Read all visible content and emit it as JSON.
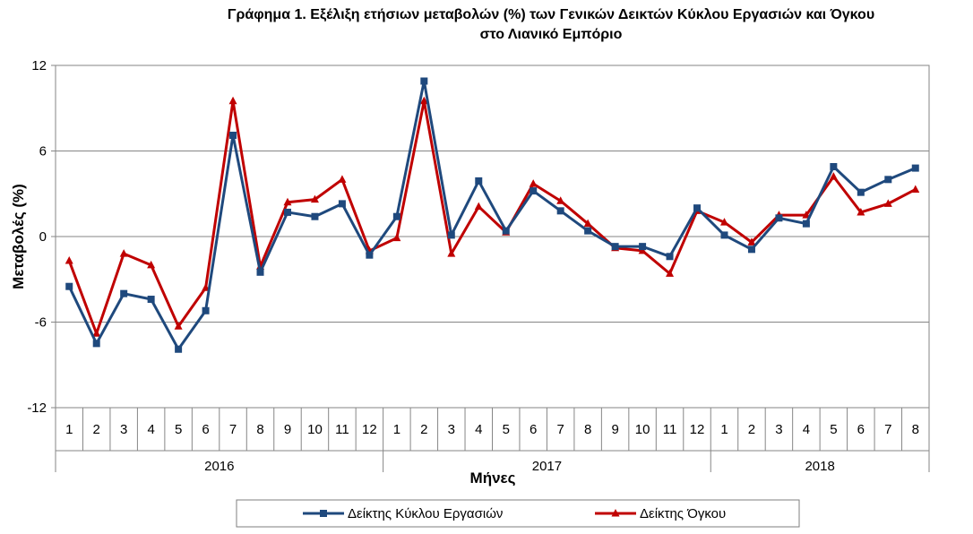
{
  "chart_data": {
    "type": "line",
    "title_line1": "Γράφημα 1. Εξέλιξη ετήσιων μεταβολών (%) των Γενικών Δεικτών Κύκλου Εργασιών και Όγκου",
    "title_line2": "στο Λιανικό Εμπόριο",
    "ylabel": "Μεταβολές  (%)",
    "xlabel": "Μήνες",
    "ylim": [
      -12,
      12
    ],
    "yticks": [
      "12",
      "6",
      "0",
      "-6",
      "-12"
    ],
    "ytick_values": [
      12,
      6,
      0,
      -6,
      -12
    ],
    "months": [
      "1",
      "2",
      "3",
      "4",
      "5",
      "6",
      "7",
      "8",
      "9",
      "10",
      "11",
      "12",
      "1",
      "2",
      "3",
      "4",
      "5",
      "6",
      "7",
      "8",
      "9",
      "10",
      "11",
      "12",
      "1",
      "2",
      "3",
      "4",
      "5",
      "6",
      "7",
      "8"
    ],
    "years": [
      {
        "label": "2016",
        "count": 12
      },
      {
        "label": "2017",
        "count": 12
      },
      {
        "label": "2018",
        "count": 8
      }
    ],
    "grid": true,
    "legend_position": "bottom",
    "series": [
      {
        "name": "Δείκτης Κύκλου Εργασιών",
        "color": "#1F497D",
        "marker": "square",
        "values": [
          -3.5,
          -7.5,
          -4.0,
          -4.4,
          -7.9,
          -5.2,
          7.1,
          -2.5,
          1.7,
          1.4,
          2.3,
          -1.3,
          1.4,
          10.9,
          0.1,
          3.9,
          0.4,
          3.2,
          1.8,
          0.4,
          -0.7,
          -0.7,
          -1.4,
          2.0,
          0.1,
          -0.9,
          1.3,
          0.9,
          4.9,
          3.1,
          4.0,
          4.8
        ]
      },
      {
        "name": "Δείκτης Όγκου",
        "color": "#C00000",
        "marker": "triangle",
        "values": [
          -1.7,
          -6.8,
          -1.2,
          -2.0,
          -6.3,
          -3.6,
          9.5,
          -2.1,
          2.4,
          2.6,
          4.0,
          -1.0,
          -0.1,
          9.5,
          -1.2,
          2.1,
          0.3,
          3.7,
          2.5,
          0.9,
          -0.8,
          -1.0,
          -2.6,
          1.8,
          1.0,
          -0.4,
          1.5,
          1.5,
          4.2,
          1.7,
          2.3,
          3.3
        ]
      }
    ]
  }
}
